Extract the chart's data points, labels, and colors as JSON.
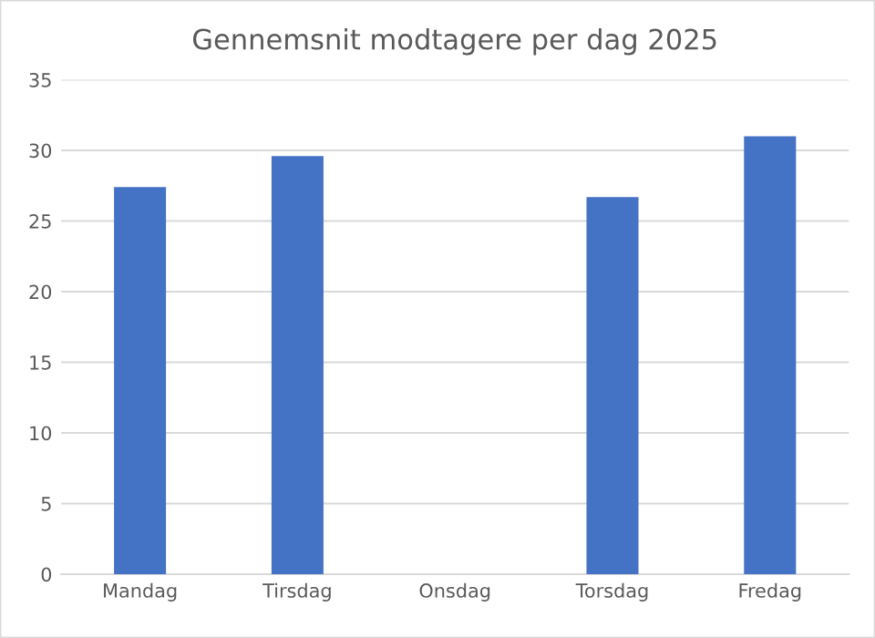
{
  "chart_data": {
    "type": "bar",
    "title": "Gennemsnit modtagere per dag 2025",
    "categories": [
      "Mandag",
      "Tirsdag",
      "Onsdag",
      "Torsdag",
      "Fredag"
    ],
    "values": [
      27.4,
      29.6,
      null,
      26.7,
      31.0
    ],
    "color": "#4472c4",
    "ylim": [
      0,
      35
    ],
    "yticks": [
      0,
      5,
      10,
      15,
      20,
      25,
      30,
      35
    ],
    "grid": "y",
    "legend": false
  }
}
